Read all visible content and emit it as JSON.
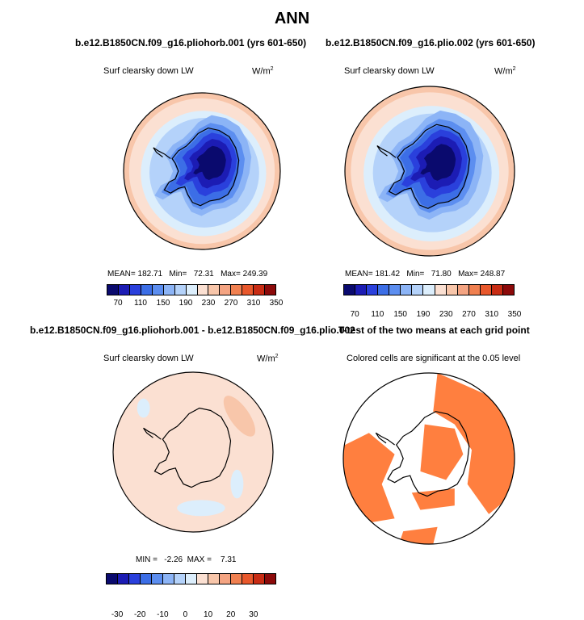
{
  "page": {
    "title": "ANN"
  },
  "chart_data": [
    {
      "type": "heatmap",
      "projection": "south-polar-stereographic",
      "title": "b.e12.B1850CN.f09_g16.pliohorb.001 (yrs 601-650)",
      "variable": "Surf clearsky down LW",
      "units_base": "W/m",
      "units_exp": "2",
      "stats": {
        "mean": "182.71",
        "min": "72.31",
        "max": "249.39"
      },
      "stats_text": "MEAN= 182.71   Min=   72.31   Max= 249.39",
      "levels": [
        70,
        90,
        110,
        130,
        150,
        170,
        190,
        210,
        230,
        250,
        270,
        290,
        310,
        330,
        350
      ],
      "tick_labels": [
        "70",
        "110",
        "150",
        "190",
        "230",
        "270",
        "310",
        "350"
      ],
      "colors": [
        "#0a0a6e",
        "#1c1cb4",
        "#2a40dc",
        "#3c6ee6",
        "#5c8ef0",
        "#8cb4f6",
        "#b4d2fa",
        "#dceefc",
        "#fbe0d2",
        "#f8c6aa",
        "#f4a482",
        "#f08050",
        "#e8582c",
        "#c82c14",
        "#8c0a0a"
      ]
    },
    {
      "type": "heatmap",
      "projection": "south-polar-stereographic",
      "title": "b.e12.B1850CN.f09_g16.plio.002 (yrs 601-650)",
      "variable": "Surf clearsky down LW",
      "units_base": "W/m",
      "units_exp": "2",
      "stats": {
        "mean": "181.42",
        "min": "71.80",
        "max": "248.87"
      },
      "stats_text": "MEAN= 181.42   Min=   71.80   Max= 248.87",
      "levels": [
        70,
        90,
        110,
        130,
        150,
        170,
        190,
        210,
        230,
        250,
        270,
        290,
        310,
        330,
        350
      ],
      "tick_labels": [
        "70",
        "110",
        "150",
        "190",
        "230",
        "270",
        "310",
        "350"
      ],
      "colors": [
        "#0a0a6e",
        "#1c1cb4",
        "#2a40dc",
        "#3c6ee6",
        "#5c8ef0",
        "#8cb4f6",
        "#b4d2fa",
        "#dceefc",
        "#fbe0d2",
        "#f8c6aa",
        "#f4a482",
        "#f08050",
        "#e8582c",
        "#c82c14",
        "#8c0a0a"
      ]
    },
    {
      "type": "heatmap",
      "projection": "south-polar-stereographic",
      "title": "b.e12.B1850CN.f09_g16.pliohorb.001 - b.e12.B1850CN.f09_g16.plio.002",
      "variable": "Surf clearsky down LW",
      "units_base": "W/m",
      "units_exp": "2",
      "stats": {
        "min": "-2.26",
        "max": "7.31"
      },
      "stats_text": "MIN =   -2.26  MAX =    7.31",
      "levels": [
        -35,
        -30,
        -25,
        -20,
        -15,
        -10,
        -5,
        0,
        5,
        10,
        15,
        20,
        25,
        30,
        35
      ],
      "tick_labels": [
        "-30",
        "-20",
        "-10",
        "0",
        "10",
        "20",
        "30"
      ],
      "colors": [
        "#0a0a6e",
        "#1c1cb4",
        "#2a40dc",
        "#3c6ee6",
        "#5c8ef0",
        "#8cb4f6",
        "#b4d2fa",
        "#dceefc",
        "#fbe0d2",
        "#f8c6aa",
        "#f4a482",
        "#f08050",
        "#e8582c",
        "#c82c14",
        "#8c0a0a"
      ]
    },
    {
      "type": "heatmap",
      "projection": "south-polar-stereographic",
      "title": "T-test of the two means at each grid point",
      "subtitle": "Colored cells are significant at the 0.05 level",
      "significant_color": "#ff7f3f"
    }
  ]
}
